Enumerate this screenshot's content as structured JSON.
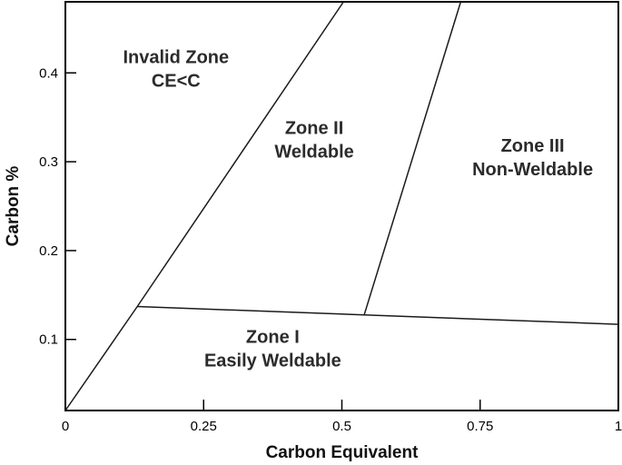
{
  "chart_data": {
    "type": "line",
    "title": "",
    "xlabel": "Carbon Equivalent",
    "ylabel": "Carbon %",
    "xlim": [
      0,
      1
    ],
    "ylim": [
      0.02,
      0.48
    ],
    "x_ticks": [
      {
        "value": 0,
        "label": "0"
      },
      {
        "value": 0.25,
        "label": "0.25"
      },
      {
        "value": 0.5,
        "label": "0.5"
      },
      {
        "value": 0.75,
        "label": "0.75"
      },
      {
        "value": 1,
        "label": "1"
      }
    ],
    "y_ticks": [
      {
        "value": 0.1,
        "label": "0.1"
      },
      {
        "value": 0.2,
        "label": "0.2"
      },
      {
        "value": 0.3,
        "label": "0.3"
      },
      {
        "value": 0.4,
        "label": "0.4"
      }
    ],
    "grid": false,
    "legend": "none",
    "series": [
      {
        "points": [
          [
            0,
            0.02
          ],
          [
            0.13,
            0.137
          ],
          [
            0.503,
            0.48
          ]
        ]
      },
      {
        "points": [
          [
            0.13,
            0.137
          ],
          [
            1,
            0.117
          ]
        ]
      },
      {
        "points": [
          [
            0.54,
            0.127
          ],
          [
            0.715,
            0.48
          ]
        ]
      }
    ],
    "annotations": [
      {
        "lines": [
          "Invalid Zone",
          "CE<C"
        ],
        "x": 0.2,
        "y": 0.405
      },
      {
        "lines": [
          "Zone II",
          "Weldable"
        ],
        "x": 0.45,
        "y": 0.325
      },
      {
        "lines": [
          "Zone III",
          "Non-Weldable"
        ],
        "x": 0.845,
        "y": 0.305
      },
      {
        "lines": [
          "Zone I",
          "Easily Weldable"
        ],
        "x": 0.375,
        "y": 0.09
      }
    ]
  }
}
